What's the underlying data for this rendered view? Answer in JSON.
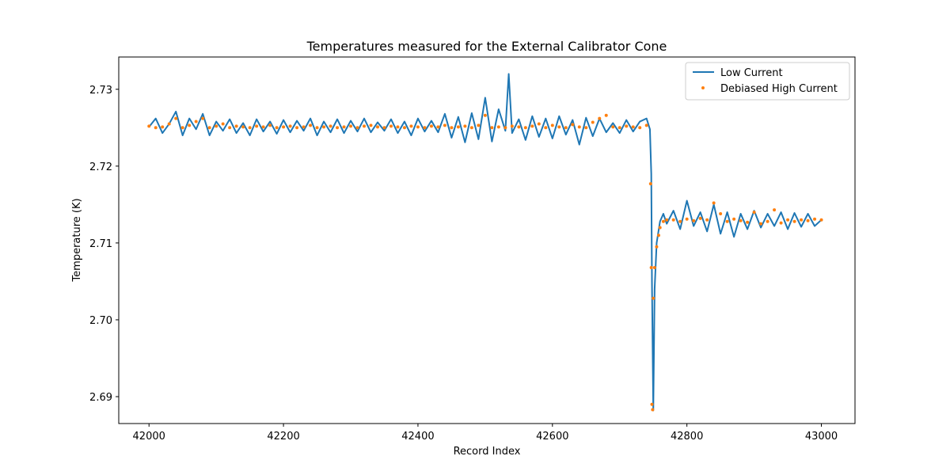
{
  "chart_data": {
    "type": "line",
    "title": "Temperatures measured for the External Calibrator Cone",
    "xlabel": "Record Index",
    "ylabel": "Temperature (K)",
    "xlim": [
      41955,
      43050
    ],
    "ylim": [
      2.6865,
      2.7342
    ],
    "xticks": [
      42000,
      42200,
      42400,
      42600,
      42800,
      43000
    ],
    "xtick_labels": [
      "42000",
      "42200",
      "42400",
      "42600",
      "42800",
      "43000"
    ],
    "yticks": [
      2.69,
      2.7,
      2.71,
      2.72,
      2.73
    ],
    "ytick_labels": [
      "2.69",
      "2.70",
      "2.71",
      "2.72",
      "2.73"
    ],
    "grid": false,
    "legend_position": "top-right",
    "series": [
      {
        "name": "Low Current",
        "kind": "line",
        "color": "#1f77b4",
        "x": [
          42000,
          42010,
          42020,
          42030,
          42040,
          42050,
          42060,
          42070,
          42080,
          42090,
          42100,
          42110,
          42120,
          42130,
          42140,
          42150,
          42160,
          42170,
          42180,
          42190,
          42200,
          42210,
          42220,
          42230,
          42240,
          42250,
          42260,
          42270,
          42280,
          42290,
          42300,
          42310,
          42320,
          42330,
          42340,
          42350,
          42360,
          42370,
          42380,
          42390,
          42400,
          42410,
          42420,
          42430,
          42440,
          42450,
          42460,
          42470,
          42480,
          42490,
          42500,
          42510,
          42520,
          42530,
          42535,
          42540,
          42550,
          42560,
          42570,
          42580,
          42590,
          42600,
          42610,
          42620,
          42630,
          42640,
          42650,
          42660,
          42670,
          42680,
          42690,
          42700,
          42710,
          42720,
          42730,
          42740,
          42745,
          42747,
          42748,
          42750,
          42752,
          42755,
          42760,
          42765,
          42770,
          42780,
          42790,
          42800,
          42810,
          42820,
          42830,
          42840,
          42850,
          42860,
          42870,
          42880,
          42890,
          42900,
          42910,
          42920,
          42930,
          42940,
          42950,
          42960,
          42970,
          42980,
          42990,
          43000
        ],
        "values": [
          2.7251,
          2.7262,
          2.7243,
          2.7255,
          2.7271,
          2.724,
          2.7262,
          2.7248,
          2.7268,
          2.724,
          2.7258,
          2.7246,
          2.7261,
          2.7243,
          2.7256,
          2.724,
          2.7261,
          2.7245,
          2.7258,
          2.7242,
          2.726,
          2.7244,
          2.7259,
          2.7246,
          2.7262,
          2.724,
          2.7258,
          2.7244,
          2.7261,
          2.7243,
          2.7259,
          2.7245,
          2.7262,
          2.7244,
          2.7257,
          2.7246,
          2.7261,
          2.7243,
          2.7258,
          2.724,
          2.7262,
          2.7245,
          2.7259,
          2.7244,
          2.7268,
          2.7237,
          2.7264,
          2.7231,
          2.7269,
          2.7235,
          2.7289,
          2.7232,
          2.7274,
          2.7246,
          2.732,
          2.7243,
          2.7261,
          2.7234,
          2.7265,
          2.7238,
          2.7262,
          2.7236,
          2.7265,
          2.7241,
          2.726,
          2.7228,
          2.7263,
          2.7239,
          2.7262,
          2.7244,
          2.7256,
          2.7243,
          2.726,
          2.7245,
          2.7258,
          2.7262,
          2.7248,
          2.719,
          2.705,
          2.6882,
          2.704,
          2.71,
          2.7128,
          2.7138,
          2.7125,
          2.7142,
          2.7118,
          2.7155,
          2.7122,
          2.714,
          2.7115,
          2.715,
          2.7112,
          2.714,
          2.7108,
          2.7138,
          2.7118,
          2.7142,
          2.712,
          2.7138,
          2.7122,
          2.714,
          2.7118,
          2.7139,
          2.7121,
          2.7138,
          2.7122,
          2.713
        ]
      },
      {
        "name": "Debiased High Current",
        "kind": "scatter",
        "color": "#ff7f0e",
        "x": [
          42000,
          42010,
          42020,
          42030,
          42040,
          42050,
          42060,
          42070,
          42080,
          42090,
          42100,
          42110,
          42120,
          42130,
          42140,
          42150,
          42160,
          42170,
          42180,
          42190,
          42200,
          42210,
          42220,
          42230,
          42240,
          42250,
          42260,
          42270,
          42280,
          42290,
          42300,
          42310,
          42320,
          42330,
          42340,
          42350,
          42360,
          42370,
          42380,
          42390,
          42400,
          42410,
          42420,
          42430,
          42440,
          42450,
          42460,
          42470,
          42480,
          42490,
          42500,
          42510,
          42520,
          42530,
          42540,
          42550,
          42560,
          42570,
          42580,
          42590,
          42600,
          42610,
          42620,
          42630,
          42640,
          42650,
          42660,
          42670,
          42680,
          42690,
          42700,
          42710,
          42720,
          42730,
          42740,
          42746,
          42747,
          42748,
          42749,
          42750,
          42752,
          42755,
          42758,
          42760,
          42765,
          42770,
          42780,
          42790,
          42800,
          42810,
          42820,
          42830,
          42840,
          42850,
          42860,
          42870,
          42880,
          42890,
          42900,
          42910,
          42920,
          42930,
          42940,
          42950,
          42960,
          42970,
          42980,
          42990,
          43000
        ],
        "values": [
          2.7252,
          2.725,
          2.7251,
          2.7255,
          2.7262,
          2.725,
          2.7253,
          2.7258,
          2.7262,
          2.725,
          2.7252,
          2.7255,
          2.725,
          2.7252,
          2.7251,
          2.725,
          2.7252,
          2.7251,
          2.7253,
          2.725,
          2.7251,
          2.7252,
          2.725,
          2.7251,
          2.7253,
          2.725,
          2.7251,
          2.7252,
          2.725,
          2.7251,
          2.7252,
          2.725,
          2.7252,
          2.7253,
          2.7251,
          2.725,
          2.7252,
          2.7251,
          2.725,
          2.7252,
          2.7251,
          2.725,
          2.7252,
          2.7251,
          2.7253,
          2.725,
          2.7251,
          2.7252,
          2.725,
          2.7253,
          2.7266,
          2.725,
          2.7251,
          2.725,
          2.7252,
          2.7251,
          2.725,
          2.7252,
          2.7255,
          2.725,
          2.7253,
          2.7251,
          2.725,
          2.7254,
          2.7251,
          2.725,
          2.7257,
          2.7262,
          2.7266,
          2.7251,
          2.725,
          2.7252,
          2.7251,
          2.725,
          2.7253,
          2.7177,
          2.7068,
          2.689,
          2.6883,
          2.7028,
          2.7068,
          2.7095,
          2.711,
          2.712,
          2.7128,
          2.713,
          2.713,
          2.7128,
          2.7131,
          2.7129,
          2.7132,
          2.713,
          2.7152,
          2.7138,
          2.7128,
          2.7131,
          2.7129,
          2.7127,
          2.714,
          2.7125,
          2.7128,
          2.7143,
          2.7126,
          2.713,
          2.7128,
          2.713,
          2.7129,
          2.7131,
          2.713
        ]
      }
    ]
  }
}
